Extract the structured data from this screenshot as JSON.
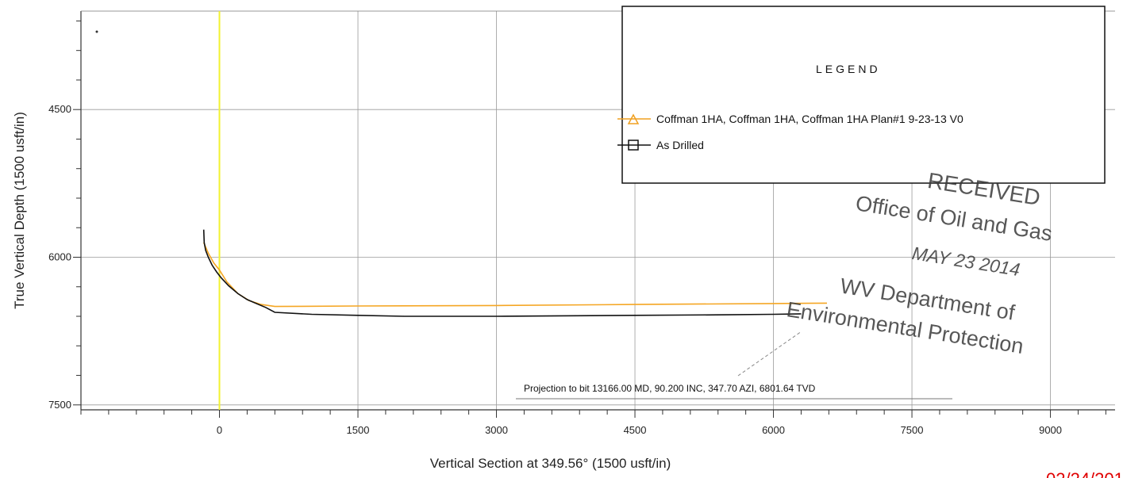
{
  "chart_data": {
    "type": "line",
    "xlabel": "Vertical Section at 349.56° (1500 usft/in)",
    "ylabel": "True Vertical Depth (1500 usft/in)",
    "xlim": [
      -1500,
      9700
    ],
    "ylim": [
      3500,
      7550
    ],
    "y_inverted": true,
    "x_ticks": [
      0,
      1500,
      3000,
      4500,
      6000,
      7500,
      9000
    ],
    "y_ticks": [
      4500,
      6000,
      7500
    ],
    "grid": true,
    "legend": {
      "title": "LEGEND",
      "placement": "top-right",
      "entries": [
        {
          "label": "Coffman 1HA, Coffman 1HA, Coffman 1HA Plan#1 9-23-13 V0",
          "color": "#f0a020",
          "marker": "triangle"
        },
        {
          "label": "As Drilled",
          "color": "#111111",
          "marker": "square"
        }
      ]
    },
    "series": [
      {
        "name": "Coffman 1HA, Coffman 1HA, Coffman 1HA Plan#1 9-23-13 V0",
        "color": "#f5a623",
        "x": [
          -170,
          -120,
          -60,
          0,
          80,
          200,
          320,
          450,
          600,
          1500,
          3000,
          4500,
          6000,
          6580
        ],
        "y": [
          5850,
          5960,
          6060,
          6130,
          6250,
          6370,
          6440,
          6480,
          6500,
          6495,
          6490,
          6480,
          6470,
          6466
        ]
      },
      {
        "name": "As Drilled",
        "color": "#111111",
        "x": [
          -170,
          -165,
          -150,
          -120,
          -80,
          -30,
          20,
          100,
          200,
          300,
          400,
          500,
          600,
          1000,
          1500,
          2000,
          3000,
          4500,
          5500,
          6000,
          6300
        ],
        "y": [
          5720,
          5850,
          5930,
          6000,
          6080,
          6150,
          6210,
          6290,
          6370,
          6430,
          6470,
          6510,
          6560,
          6580,
          6590,
          6600,
          6600,
          6590,
          6585,
          6580,
          6575
        ]
      }
    ],
    "annotations": [
      {
        "text": "Projection to bit 13166.00 MD, 90.200 INC, 347.70 AZI, 6801.64 TVD"
      }
    ],
    "vertical_marker": {
      "x": 0,
      "color": "#f2f230"
    }
  },
  "stamp": {
    "line1": "RECEIVED",
    "line2": "Office of Oil and Gas",
    "line3": "MAY 23 2014",
    "line4": "WV Department of",
    "line5": "Environmental Protection"
  },
  "footer": {
    "date_fragment": "02/24/201"
  }
}
